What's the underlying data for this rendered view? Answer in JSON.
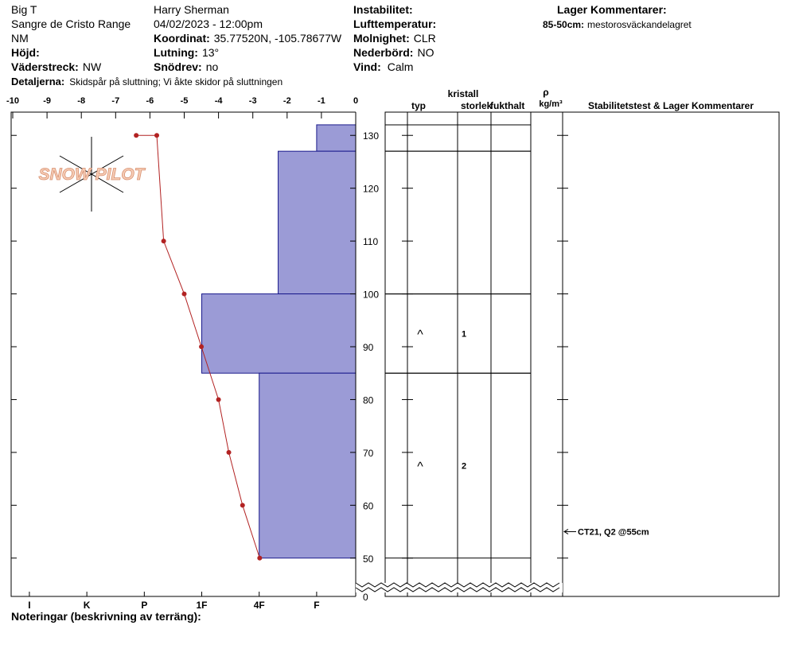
{
  "header": {
    "location": "Big T",
    "range": "Sangre de Cristo Range",
    "state": "NM",
    "elevation_label": "Höjd:",
    "aspect_label": "Väderstreck:",
    "aspect": "NW",
    "observer": "Harry Sherman",
    "datetime": "04/02/2023 - 12:00pm",
    "coord_label": "Koordinat:",
    "coord": "35.77520N, -105.78677W",
    "slope_label": "Lutning:",
    "slope": "13°",
    "drift_label": "Snödrev:",
    "drift": "no",
    "instability_label": "Instabilitet:",
    "air_temp_label": "Lufttemperatur:",
    "sky_label": "Molnighet:",
    "sky": "CLR",
    "precip_label": "Nederbörd:",
    "precip": "NO",
    "wind_label": "Vind:",
    "wind": "Calm",
    "layer_comments_title": "Lager Kommentarer:",
    "layer_comments": [
      {
        "range": "85-50cm:",
        "text": "mestorosväckandelagret"
      }
    ],
    "details_label": "Detaljerna:",
    "details": "Skidspår på sluttning;  Vi åkte skidor på sluttningen"
  },
  "logo": "SNOW PILOT",
  "chart_data": {
    "type": "snow_profile",
    "xlim": [
      -10,
      0
    ],
    "xticks": [
      -10,
      -9,
      -8,
      -7,
      -6,
      -5,
      -4,
      -3,
      -2,
      -1,
      0
    ],
    "ylim": [
      0,
      134.4
    ],
    "axis_break": 45,
    "yticks": [
      0,
      50,
      60,
      70,
      80,
      90,
      100,
      110,
      120,
      130
    ],
    "temperature": {
      "depths": [
        130,
        130,
        110,
        100,
        90,
        80,
        70,
        60,
        50
      ],
      "values": [
        -6.4,
        -5.8,
        -5.6,
        -5.0,
        -4.5,
        -4.0,
        -3.7,
        -3.3,
        -2.8
      ],
      "color": "#b22222"
    },
    "hardness_lim": [
      6.29,
      0.32
    ],
    "hardness_ticks": [
      {
        "value": 6,
        "label": "I"
      },
      {
        "value": 5,
        "label": "K"
      },
      {
        "value": 4,
        "label": "P"
      },
      {
        "value": 3,
        "label": "1F"
      },
      {
        "value": 2,
        "label": "4F"
      },
      {
        "value": 1,
        "label": "F"
      }
    ],
    "layer_color": "#9b9bd6",
    "layers": [
      {
        "top": 132,
        "bottom": 127,
        "hardness": 1
      },
      {
        "top": 127,
        "bottom": 100,
        "hardness": 1.67
      },
      {
        "top": 100,
        "bottom": 85,
        "hardness": 3,
        "grain_type": "^",
        "grain_size": "1"
      },
      {
        "top": 85,
        "bottom": 50,
        "hardness": 2,
        "grain_type": "^",
        "grain_size": "2"
      }
    ],
    "tests": [
      {
        "depth": 55,
        "text": "CT21, Q2 @55cm"
      }
    ]
  },
  "table_headers": {
    "crystal": "kristall",
    "type": "typ",
    "size": "storlek",
    "moisture": "fukthalt",
    "rho": "ρ",
    "density_unit": "kg/m³",
    "stability": "Stabilitetstest & Lager Kommentarer"
  },
  "notes_label": "Noteringar (beskrivning av terräng):"
}
